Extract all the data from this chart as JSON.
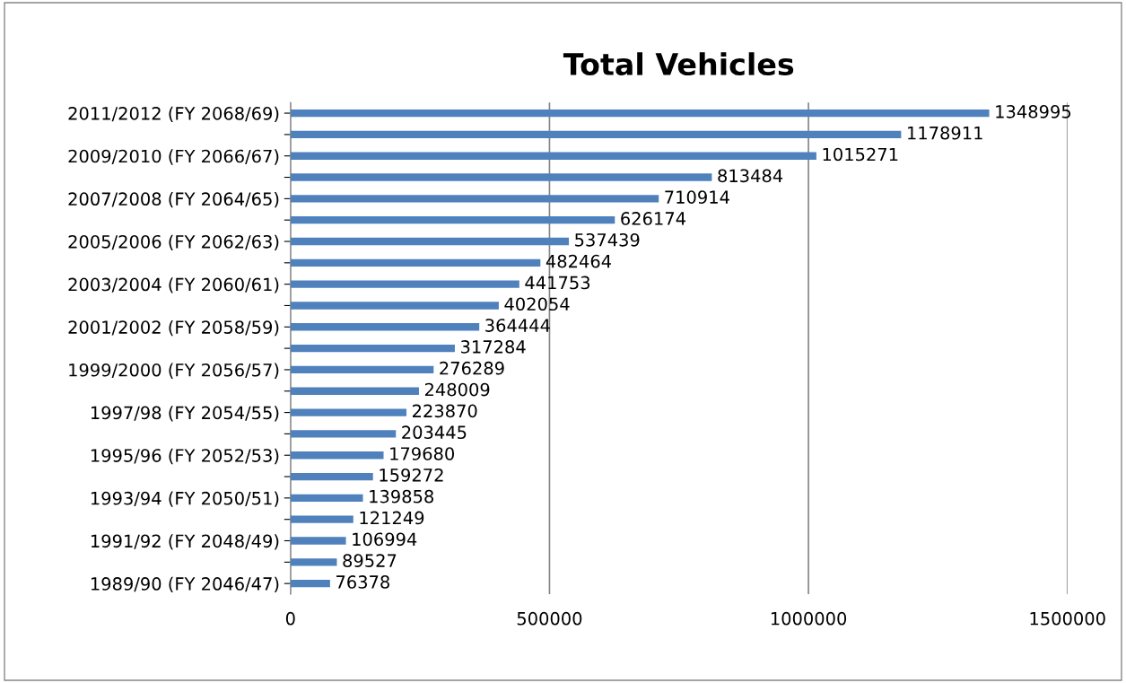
{
  "chart_data": {
    "type": "bar",
    "orientation": "horizontal",
    "title": "Total Vehicles",
    "categories": [
      "2011/2012 (FY 2068/69)",
      null,
      "2009/2010 (FY 2066/67)",
      null,
      "2007/2008 (FY 2064/65)",
      null,
      "2005/2006 (FY 2062/63)",
      null,
      "2003/2004 (FY 2060/61)",
      null,
      "2001/2002 (FY 2058/59)",
      null,
      "1999/2000 (FY 2056/57)",
      null,
      "1997/98 (FY 2054/55)",
      null,
      "1995/96 (FY 2052/53)",
      null,
      "1993/94 (FY 2050/51)",
      null,
      "1991/92 (FY 2048/49)",
      null,
      "1989/90 (FY 2046/47)"
    ],
    "values": [
      1348995,
      1178911,
      1015271,
      813484,
      710914,
      626174,
      537439,
      482464,
      441753,
      402054,
      364444,
      317284,
      276289,
      248009,
      223870,
      203445,
      179680,
      159272,
      139858,
      121249,
      106994,
      89527,
      76378
    ],
    "color": "#4f81bd",
    "xlim": [
      0,
      1500000
    ],
    "xticks": [
      0,
      500000,
      1000000,
      1500000
    ],
    "grid": "x",
    "data_labels": true,
    "legend": false
  }
}
